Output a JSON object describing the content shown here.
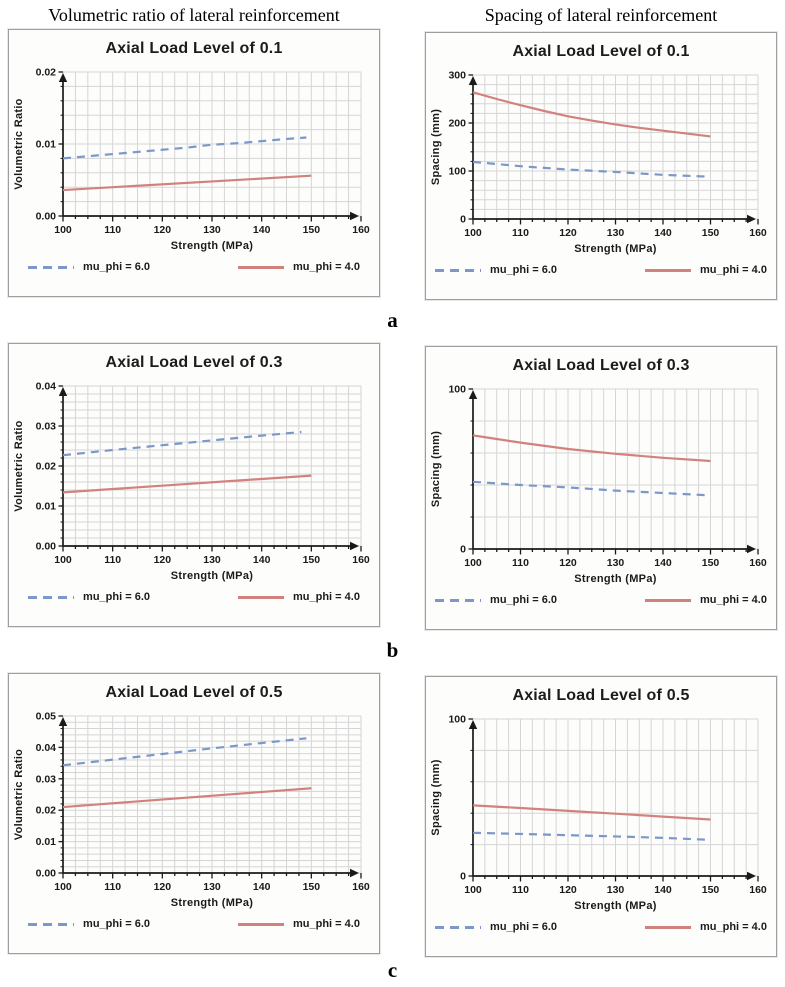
{
  "figure": {
    "column_headings": [
      "Volumetric ratio of lateral reinforcement",
      "Spacing of lateral reinforcement"
    ],
    "row_labels": [
      "a",
      "b",
      "c"
    ]
  },
  "colors": {
    "grid": "#d5d5d5",
    "axis": "#1a1a1a",
    "blue_dashed": "#7c97c9",
    "red_solid": "#d2827e"
  },
  "chart_data": [
    {
      "type": "line",
      "title": "Axial Load Level of 0.1",
      "xlabel": "Strength (MPa)",
      "ylabel": "Volumetric Ratio",
      "xlim": [
        100,
        160
      ],
      "xminor": 2.5,
      "xticks": [
        100,
        110,
        120,
        130,
        140,
        150,
        160
      ],
      "xtick_labels": [
        "100",
        "110",
        "120",
        "130",
        "140",
        "150",
        "160"
      ],
      "ylim": [
        0,
        0.02
      ],
      "yminor": 0.002,
      "yticks": [
        0,
        0.01,
        0.02
      ],
      "ytick_labels": [
        "0.00",
        "0.01",
        "0.02"
      ],
      "grid": true,
      "legend_position": "bottom",
      "series": [
        {
          "name": "mu_phi = 6.0",
          "style": "dashed",
          "color": "#7c97c9",
          "x": [
            100,
            105,
            110,
            115,
            120,
            125,
            130,
            135,
            140,
            145,
            149
          ],
          "y": [
            0.008,
            0.0083,
            0.0086,
            0.0089,
            0.0092,
            0.0095,
            0.0099,
            0.0101,
            0.0104,
            0.0107,
            0.0109
          ]
        },
        {
          "name": "mu_phi = 4.0",
          "style": "solid",
          "color": "#d2827e",
          "x": [
            100,
            150
          ],
          "y": [
            0.0036,
            0.0056
          ]
        }
      ]
    },
    {
      "type": "line",
      "title": "Axial Load Level of 0.1",
      "xlabel": "Strength (MPa)",
      "ylabel": "Spacing (mm)",
      "xlim": [
        100,
        160
      ],
      "xminor": 2.5,
      "xticks": [
        100,
        110,
        120,
        130,
        140,
        150,
        160
      ],
      "xtick_labels": [
        "100",
        "110",
        "120",
        "130",
        "140",
        "150",
        "160"
      ],
      "ylim": [
        0,
        300
      ],
      "yminor": 20,
      "yticks": [
        0,
        100,
        200,
        300
      ],
      "ytick_labels": [
        "0",
        "100",
        "200",
        "300"
      ],
      "grid": true,
      "legend_position": "bottom",
      "series": [
        {
          "name": "mu_phi = 6.0",
          "style": "dashed",
          "color": "#7c97c9",
          "x": [
            100,
            110,
            120,
            130,
            140,
            150
          ],
          "y": [
            119,
            110,
            103,
            98,
            92,
            88
          ]
        },
        {
          "name": "mu_phi = 4.0",
          "style": "solid",
          "color": "#d2827e",
          "x": [
            100,
            105,
            110,
            115,
            120,
            125,
            130,
            135,
            140,
            145,
            150
          ],
          "y": [
            264,
            250,
            237,
            225,
            214,
            205,
            197,
            190,
            184,
            178,
            172
          ]
        }
      ]
    },
    {
      "type": "line",
      "title": "Axial Load Level of 0.3",
      "xlabel": "Strength (MPa)",
      "ylabel": "Volumetric Ratio",
      "xlim": [
        100,
        160
      ],
      "xminor": 2.5,
      "xticks": [
        100,
        110,
        120,
        130,
        140,
        150,
        160
      ],
      "xtick_labels": [
        "100",
        "110",
        "120",
        "130",
        "140",
        "150",
        "160"
      ],
      "ylim": [
        0,
        0.04
      ],
      "yminor": 0.002,
      "yticks": [
        0,
        0.01,
        0.02,
        0.03,
        0.04
      ],
      "ytick_labels": [
        "0.00",
        "0.01",
        "0.02",
        "0.03",
        "0.04"
      ],
      "grid": true,
      "legend_position": "bottom",
      "series": [
        {
          "name": "mu_phi = 6.0",
          "style": "dashed",
          "color": "#7c97c9",
          "x": [
            100,
            110,
            120,
            130,
            140,
            148
          ],
          "y": [
            0.0227,
            0.024,
            0.0252,
            0.0264,
            0.0276,
            0.0285
          ]
        },
        {
          "name": "mu_phi = 4.0",
          "style": "solid",
          "color": "#d2827e",
          "x": [
            100,
            150
          ],
          "y": [
            0.0134,
            0.0176
          ]
        }
      ]
    },
    {
      "type": "line",
      "title": "Axial Load Level of 0.3",
      "xlabel": "Strength (MPa)",
      "ylabel": "Spacing (mm)",
      "xlim": [
        100,
        160
      ],
      "xminor": 2.5,
      "xticks": [
        100,
        110,
        120,
        130,
        140,
        150,
        160
      ],
      "xtick_labels": [
        "100",
        "110",
        "120",
        "130",
        "140",
        "150",
        "160"
      ],
      "ylim": [
        0,
        100
      ],
      "yminor": 20,
      "yticks": [
        0,
        100
      ],
      "ytick_labels": [
        "0",
        "100"
      ],
      "grid": true,
      "legend_position": "bottom",
      "series": [
        {
          "name": "mu_phi = 6.0",
          "style": "dashed",
          "color": "#7c97c9",
          "x": [
            100,
            110,
            120,
            130,
            140,
            150
          ],
          "y": [
            42,
            40,
            38.5,
            36.5,
            35,
            33.5
          ]
        },
        {
          "name": "mu_phi = 4.0",
          "style": "solid",
          "color": "#d2827e",
          "x": [
            100,
            110,
            120,
            130,
            140,
            150
          ],
          "y": [
            71,
            66.5,
            62.5,
            59.5,
            57,
            55
          ]
        }
      ]
    },
    {
      "type": "line",
      "title": "Axial Load Level of 0.5",
      "xlabel": "Strength (MPa)",
      "ylabel": "Volumetric Ratio",
      "xlim": [
        100,
        160
      ],
      "xminor": 2.5,
      "xticks": [
        100,
        110,
        120,
        130,
        140,
        150,
        160
      ],
      "xtick_labels": [
        "100",
        "110",
        "120",
        "130",
        "140",
        "150",
        "160"
      ],
      "ylim": [
        0,
        0.05
      ],
      "yminor": 0.002,
      "yticks": [
        0,
        0.01,
        0.02,
        0.03,
        0.04,
        0.05
      ],
      "ytick_labels": [
        "0.00",
        "0.01",
        "0.02",
        "0.03",
        "0.04",
        "0.05"
      ],
      "grid": true,
      "legend_position": "bottom",
      "series": [
        {
          "name": "mu_phi = 6.0",
          "style": "dashed",
          "color": "#7c97c9",
          "x": [
            100,
            110,
            120,
            130,
            140,
            149
          ],
          "y": [
            0.0343,
            0.0361,
            0.0379,
            0.0397,
            0.0414,
            0.0429
          ]
        },
        {
          "name": "mu_phi = 4.0",
          "style": "solid",
          "color": "#d2827e",
          "x": [
            100,
            150
          ],
          "y": [
            0.021,
            0.027
          ]
        }
      ]
    },
    {
      "type": "line",
      "title": "Axial Load Level of 0.5",
      "xlabel": "Strength (MPa)",
      "ylabel": "Spacing (mm)",
      "xlim": [
        100,
        160
      ],
      "xminor": 2.5,
      "xticks": [
        100,
        110,
        120,
        130,
        140,
        150,
        160
      ],
      "xtick_labels": [
        "100",
        "110",
        "120",
        "130",
        "140",
        "150",
        "160"
      ],
      "ylim": [
        0,
        100
      ],
      "yminor": 20,
      "yticks": [
        0,
        100
      ],
      "ytick_labels": [
        "0",
        "100"
      ],
      "grid": true,
      "legend_position": "bottom",
      "series": [
        {
          "name": "mu_phi = 6.0",
          "style": "dashed",
          "color": "#7c97c9",
          "x": [
            100,
            110,
            120,
            130,
            140,
            150
          ],
          "y": [
            27.5,
            26.8,
            26,
            25.2,
            24.3,
            23
          ]
        },
        {
          "name": "mu_phi = 4.0",
          "style": "solid",
          "color": "#d2827e",
          "x": [
            100,
            110,
            120,
            130,
            140,
            150
          ],
          "y": [
            45,
            43.3,
            41.5,
            39.7,
            37.8,
            36
          ]
        }
      ]
    }
  ]
}
